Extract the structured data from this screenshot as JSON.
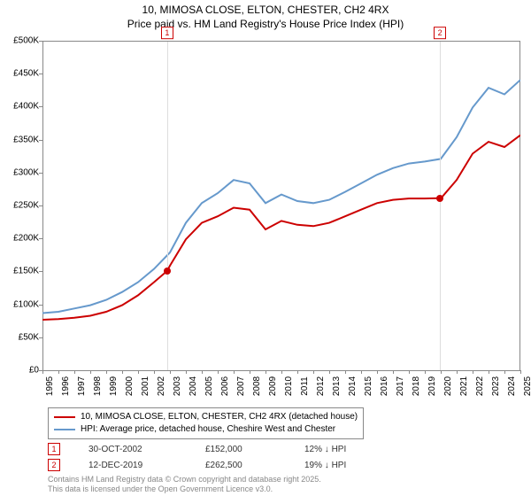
{
  "title": {
    "line1": "10, MIMOSA CLOSE, ELTON, CHESTER, CH2 4RX",
    "line2": "Price paid vs. HM Land Registry's House Price Index (HPI)"
  },
  "chart": {
    "type": "line",
    "background_color": "#ffffff",
    "grid_color": "#dddddd",
    "axis_color": "#888888",
    "label_fontsize": 10,
    "y": {
      "min": 0,
      "max": 500000,
      "step": 50000,
      "format": "£{v}K",
      "ticks": [
        "£0",
        "£50K",
        "£100K",
        "£150K",
        "£200K",
        "£250K",
        "£300K",
        "£350K",
        "£400K",
        "£450K",
        "£500K"
      ]
    },
    "x": {
      "min": 1995,
      "max": 2025,
      "step": 1,
      "labels": [
        "1995",
        "1996",
        "1997",
        "1998",
        "1999",
        "2000",
        "2001",
        "2002",
        "2003",
        "2004",
        "2005",
        "2006",
        "2007",
        "2008",
        "2009",
        "2010",
        "2011",
        "2012",
        "2013",
        "2014",
        "2015",
        "2016",
        "2017",
        "2018",
        "2019",
        "2020",
        "2021",
        "2022",
        "2023",
        "2024",
        "2025"
      ]
    },
    "series": [
      {
        "name": "price_paid",
        "label": "10, MIMOSA CLOSE, ELTON, CHESTER, CH2 4RX (detached house)",
        "color": "#cc0000",
        "line_width": 2,
        "data": [
          [
            1995,
            78000
          ],
          [
            1996,
            79000
          ],
          [
            1997,
            81000
          ],
          [
            1998,
            84000
          ],
          [
            1999,
            90000
          ],
          [
            2000,
            100000
          ],
          [
            2001,
            115000
          ],
          [
            2002,
            135000
          ],
          [
            2002.83,
            152000
          ],
          [
            2003,
            160000
          ],
          [
            2004,
            200000
          ],
          [
            2005,
            225000
          ],
          [
            2006,
            235000
          ],
          [
            2007,
            248000
          ],
          [
            2008,
            245000
          ],
          [
            2009,
            215000
          ],
          [
            2010,
            228000
          ],
          [
            2011,
            222000
          ],
          [
            2012,
            220000
          ],
          [
            2013,
            225000
          ],
          [
            2014,
            235000
          ],
          [
            2015,
            245000
          ],
          [
            2016,
            255000
          ],
          [
            2017,
            260000
          ],
          [
            2018,
            262000
          ],
          [
            2019,
            262000
          ],
          [
            2019.95,
            262500
          ],
          [
            2020,
            262000
          ],
          [
            2021,
            290000
          ],
          [
            2022,
            330000
          ],
          [
            2023,
            348000
          ],
          [
            2024,
            340000
          ],
          [
            2025,
            358000
          ]
        ]
      },
      {
        "name": "hpi",
        "label": "HPI: Average price, detached house, Cheshire West and Chester",
        "color": "#6699cc",
        "line_width": 2,
        "data": [
          [
            1995,
            88000
          ],
          [
            1996,
            90000
          ],
          [
            1997,
            95000
          ],
          [
            1998,
            100000
          ],
          [
            1999,
            108000
          ],
          [
            2000,
            120000
          ],
          [
            2001,
            135000
          ],
          [
            2002,
            155000
          ],
          [
            2003,
            180000
          ],
          [
            2004,
            225000
          ],
          [
            2005,
            255000
          ],
          [
            2006,
            270000
          ],
          [
            2007,
            290000
          ],
          [
            2008,
            285000
          ],
          [
            2009,
            255000
          ],
          [
            2010,
            268000
          ],
          [
            2011,
            258000
          ],
          [
            2012,
            255000
          ],
          [
            2013,
            260000
          ],
          [
            2014,
            272000
          ],
          [
            2015,
            285000
          ],
          [
            2016,
            298000
          ],
          [
            2017,
            308000
          ],
          [
            2018,
            315000
          ],
          [
            2019,
            318000
          ],
          [
            2020,
            322000
          ],
          [
            2021,
            355000
          ],
          [
            2022,
            400000
          ],
          [
            2023,
            430000
          ],
          [
            2024,
            420000
          ],
          [
            2025,
            442000
          ]
        ]
      }
    ],
    "markers": [
      {
        "id": "1",
        "x": 2002.83,
        "y": 152000,
        "color": "#cc0000"
      },
      {
        "id": "2",
        "x": 2019.95,
        "y": 262500,
        "color": "#cc0000"
      }
    ]
  },
  "legend": {
    "items": [
      {
        "color": "#cc0000",
        "text": "10, MIMOSA CLOSE, ELTON, CHESTER, CH2 4RX (detached house)"
      },
      {
        "color": "#6699cc",
        "text": "HPI: Average price, detached house, Cheshire West and Chester"
      }
    ]
  },
  "footer": {
    "rows": [
      {
        "marker": "1",
        "marker_color": "#cc0000",
        "date": "30-OCT-2002",
        "price": "£152,000",
        "delta": "12% ↓ HPI"
      },
      {
        "marker": "2",
        "marker_color": "#cc0000",
        "date": "12-DEC-2019",
        "price": "£262,500",
        "delta": "19% ↓ HPI"
      }
    ]
  },
  "attribution": {
    "line1": "Contains HM Land Registry data © Crown copyright and database right 2025.",
    "line2": "This data is licensed under the Open Government Licence v3.0."
  }
}
